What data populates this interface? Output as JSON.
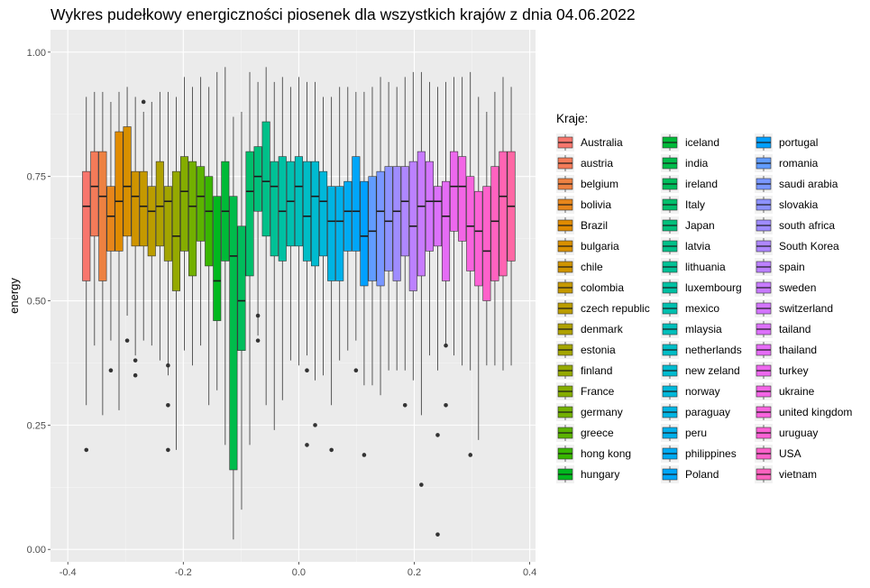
{
  "chart_data": {
    "type": "boxplot",
    "title": "Wykres pudełkowy energiczności piosenek dla wszystkich krajów z dnia 04.06.2022",
    "xlabel": "",
    "ylabel": "energy",
    "xlim": [
      -0.4,
      0.4
    ],
    "ylim": [
      0,
      1
    ],
    "x_ticks": [
      "-0.4",
      "-0.2",
      "0.0",
      "0.2",
      "0.4"
    ],
    "y_ticks": [
      "0.00",
      "0.25",
      "0.50",
      "0.75",
      "1.00"
    ],
    "grid": true,
    "legend_title": "Kraje:",
    "legend_position": "right",
    "series": [
      {
        "name": "Australia",
        "color": "#F8766D",
        "min": 0.29,
        "q1": 0.54,
        "median": 0.69,
        "q3": 0.76,
        "max": 0.91,
        "outliers": [
          0.2
        ]
      },
      {
        "name": "austria",
        "color": "#F37B59",
        "min": 0.41,
        "q1": 0.63,
        "median": 0.73,
        "q3": 0.8,
        "max": 0.92,
        "outliers": []
      },
      {
        "name": "belgium",
        "color": "#ED8141",
        "min": 0.27,
        "q1": 0.54,
        "median": 0.71,
        "q3": 0.8,
        "max": 0.92,
        "outliers": []
      },
      {
        "name": "bolivia",
        "color": "#E7861B",
        "min": 0.42,
        "q1": 0.6,
        "median": 0.67,
        "q3": 0.73,
        "max": 0.9,
        "outliers": [
          0.36
        ]
      },
      {
        "name": "Brazil",
        "color": "#E08B00",
        "min": 0.28,
        "q1": 0.6,
        "median": 0.7,
        "q3": 0.84,
        "max": 0.92,
        "outliers": []
      },
      {
        "name": "bulgaria",
        "color": "#D89000",
        "min": 0.47,
        "q1": 0.63,
        "median": 0.73,
        "q3": 0.85,
        "max": 0.93,
        "outliers": [
          0.42
        ]
      },
      {
        "name": "chile",
        "color": "#CF9400",
        "min": 0.39,
        "q1": 0.61,
        "median": 0.71,
        "q3": 0.76,
        "max": 0.91,
        "outliers": [
          0.38,
          0.35
        ]
      },
      {
        "name": "colombia",
        "color": "#C59900",
        "min": 0.42,
        "q1": 0.61,
        "median": 0.69,
        "q3": 0.76,
        "max": 0.88,
        "outliers": [
          0.9
        ]
      },
      {
        "name": "czech republic",
        "color": "#BB9D00",
        "min": 0.41,
        "q1": 0.59,
        "median": 0.68,
        "q3": 0.73,
        "max": 0.9,
        "outliers": []
      },
      {
        "name": "denmark",
        "color": "#AFA100",
        "min": 0.38,
        "q1": 0.61,
        "median": 0.69,
        "q3": 0.78,
        "max": 0.92,
        "outliers": []
      },
      {
        "name": "estonia",
        "color": "#A3A500",
        "min": 0.35,
        "q1": 0.58,
        "median": 0.7,
        "q3": 0.73,
        "max": 0.92,
        "outliers": [
          0.37,
          0.29,
          0.2
        ]
      },
      {
        "name": "finland",
        "color": "#95A900",
        "min": 0.2,
        "q1": 0.52,
        "median": 0.63,
        "q3": 0.76,
        "max": 0.91,
        "outliers": []
      },
      {
        "name": "France",
        "color": "#85AD00",
        "min": 0.4,
        "q1": 0.6,
        "median": 0.72,
        "q3": 0.79,
        "max": 0.95,
        "outliers": []
      },
      {
        "name": "germany",
        "color": "#72B000",
        "min": 0.37,
        "q1": 0.55,
        "median": 0.69,
        "q3": 0.78,
        "max": 0.93,
        "outliers": []
      },
      {
        "name": "greece",
        "color": "#5BB300",
        "min": 0.41,
        "q1": 0.62,
        "median": 0.71,
        "q3": 0.77,
        "max": 0.95,
        "outliers": []
      },
      {
        "name": "hong kong",
        "color": "#39B600",
        "min": 0.29,
        "q1": 0.57,
        "median": 0.68,
        "q3": 0.75,
        "max": 0.93,
        "outliers": []
      },
      {
        "name": "hungary",
        "color": "#00B81F",
        "min": 0.32,
        "q1": 0.46,
        "median": 0.54,
        "q3": 0.71,
        "max": 0.96,
        "outliers": []
      },
      {
        "name": "iceland",
        "color": "#00BA38",
        "min": 0.21,
        "q1": 0.58,
        "median": 0.68,
        "q3": 0.78,
        "max": 0.97,
        "outliers": []
      },
      {
        "name": "india",
        "color": "#00BC4B",
        "min": 0.02,
        "q1": 0.16,
        "median": 0.59,
        "q3": 0.71,
        "max": 0.87,
        "outliers": []
      },
      {
        "name": "ireland",
        "color": "#00BD5C",
        "min": 0.08,
        "q1": 0.4,
        "median": 0.5,
        "q3": 0.65,
        "max": 0.88,
        "outliers": []
      },
      {
        "name": "Italy",
        "color": "#00BF6C",
        "min": 0.21,
        "q1": 0.55,
        "median": 0.72,
        "q3": 0.8,
        "max": 0.96,
        "outliers": []
      },
      {
        "name": "Japan",
        "color": "#00C07B",
        "min": 0.43,
        "q1": 0.68,
        "median": 0.75,
        "q3": 0.81,
        "max": 0.94,
        "outliers": [
          0.47,
          0.42
        ]
      },
      {
        "name": "latvia",
        "color": "#00C089",
        "min": 0.29,
        "q1": 0.63,
        "median": 0.74,
        "q3": 0.86,
        "max": 0.97,
        "outliers": []
      },
      {
        "name": "lithuania",
        "color": "#00C196",
        "min": 0.24,
        "q1": 0.59,
        "median": 0.73,
        "q3": 0.78,
        "max": 0.94,
        "outliers": []
      },
      {
        "name": "luxembourg",
        "color": "#00C1A3",
        "min": 0.3,
        "q1": 0.58,
        "median": 0.68,
        "q3": 0.79,
        "max": 0.95,
        "outliers": []
      },
      {
        "name": "mexico",
        "color": "#00C0AF",
        "min": 0.38,
        "q1": 0.61,
        "median": 0.7,
        "q3": 0.78,
        "max": 0.93,
        "outliers": []
      },
      {
        "name": "mlaysia",
        "color": "#00BFBB",
        "min": 0.37,
        "q1": 0.61,
        "median": 0.73,
        "q3": 0.79,
        "max": 0.95,
        "outliers": []
      },
      {
        "name": "netherlands",
        "color": "#00BDC6",
        "min": 0.39,
        "q1": 0.58,
        "median": 0.67,
        "q3": 0.78,
        "max": 0.94,
        "outliers": [
          0.36,
          0.21
        ]
      },
      {
        "name": "new zeland",
        "color": "#00BBD0",
        "min": 0.34,
        "q1": 0.57,
        "median": 0.71,
        "q3": 0.78,
        "max": 0.94,
        "outliers": [
          0.25
        ]
      },
      {
        "name": "norway",
        "color": "#00B8DA",
        "min": 0.35,
        "q1": 0.59,
        "median": 0.7,
        "q3": 0.76,
        "max": 0.91,
        "outliers": []
      },
      {
        "name": "paraguay",
        "color": "#00B4E3",
        "min": 0.29,
        "q1": 0.54,
        "median": 0.66,
        "q3": 0.73,
        "max": 0.91,
        "outliers": [
          0.2
        ]
      },
      {
        "name": "peru",
        "color": "#00B0EB",
        "min": 0.38,
        "q1": 0.54,
        "median": 0.66,
        "q3": 0.73,
        "max": 0.93,
        "outliers": []
      },
      {
        "name": "philippines",
        "color": "#00ABF3",
        "min": 0.4,
        "q1": 0.6,
        "median": 0.68,
        "q3": 0.74,
        "max": 0.93,
        "outliers": []
      },
      {
        "name": "Poland",
        "color": "#00A6F9",
        "min": 0.42,
        "q1": 0.6,
        "median": 0.68,
        "q3": 0.79,
        "max": 0.92,
        "outliers": [
          0.36
        ]
      },
      {
        "name": "portugal",
        "color": "#00A0FF",
        "min": 0.33,
        "q1": 0.53,
        "median": 0.63,
        "q3": 0.74,
        "max": 0.92,
        "outliers": [
          0.19
        ]
      },
      {
        "name": "romania",
        "color": "#619CFF",
        "min": 0.33,
        "q1": 0.54,
        "median": 0.64,
        "q3": 0.75,
        "max": 0.93,
        "outliers": []
      },
      {
        "name": "saudi arabia",
        "color": "#7997FF",
        "min": 0.31,
        "q1": 0.53,
        "median": 0.68,
        "q3": 0.76,
        "max": 0.95,
        "outliers": []
      },
      {
        "name": "slovakia",
        "color": "#8D92FF",
        "min": 0.36,
        "q1": 0.56,
        "median": 0.66,
        "q3": 0.77,
        "max": 0.94,
        "outliers": []
      },
      {
        "name": "south africa",
        "color": "#9F8CFF",
        "min": 0.36,
        "q1": 0.54,
        "median": 0.68,
        "q3": 0.77,
        "max": 0.93,
        "outliers": []
      },
      {
        "name": "South Korea",
        "color": "#AE87FF",
        "min": 0.36,
        "q1": 0.59,
        "median": 0.7,
        "q3": 0.77,
        "max": 0.95,
        "outliers": [
          0.29
        ]
      },
      {
        "name": "spain",
        "color": "#BC81FF",
        "min": 0.34,
        "q1": 0.52,
        "median": 0.65,
        "q3": 0.78,
        "max": 0.96,
        "outliers": []
      },
      {
        "name": "sweden",
        "color": "#C87BFF",
        "min": 0.27,
        "q1": 0.55,
        "median": 0.69,
        "q3": 0.8,
        "max": 0.96,
        "outliers": [
          0.13
        ]
      },
      {
        "name": "switzerland",
        "color": "#D375FE",
        "min": 0.39,
        "q1": 0.6,
        "median": 0.7,
        "q3": 0.78,
        "max": 0.94,
        "outliers": []
      },
      {
        "name": "tailand",
        "color": "#DC71FA",
        "min": 0.36,
        "q1": 0.61,
        "median": 0.7,
        "q3": 0.73,
        "max": 0.93,
        "outliers": [
          0.23,
          0.03
        ]
      },
      {
        "name": "thailand",
        "color": "#E56CF5",
        "min": 0.41,
        "q1": 0.54,
        "median": 0.67,
        "q3": 0.74,
        "max": 0.94,
        "outliers": [
          0.29,
          0.41
        ]
      },
      {
        "name": "turkey",
        "color": "#ED68EE",
        "min": 0.39,
        "q1": 0.64,
        "median": 0.73,
        "q3": 0.8,
        "max": 0.95,
        "outliers": []
      },
      {
        "name": "ukraine",
        "color": "#F365E6",
        "min": 0.37,
        "q1": 0.62,
        "median": 0.73,
        "q3": 0.79,
        "max": 0.95,
        "outliers": []
      },
      {
        "name": "united kingdom",
        "color": "#F863DE",
        "min": 0.36,
        "q1": 0.56,
        "median": 0.65,
        "q3": 0.75,
        "max": 0.96,
        "outliers": [
          0.19
        ]
      },
      {
        "name": "uruguay",
        "color": "#FC61D5",
        "min": 0.22,
        "q1": 0.53,
        "median": 0.64,
        "q3": 0.72,
        "max": 0.91,
        "outliers": []
      },
      {
        "name": "USA",
        "color": "#FE61CA",
        "min": 0.37,
        "q1": 0.5,
        "median": 0.6,
        "q3": 0.73,
        "max": 0.88,
        "outliers": []
      },
      {
        "name": "vietnam",
        "color": "#FF62BF",
        "min": 0.37,
        "q1": 0.54,
        "median": 0.66,
        "q3": 0.77,
        "max": 0.92,
        "outliers": []
      },
      {
        "name": "USA",
        "color": "#FF64B3",
        "min": 0.36,
        "q1": 0.55,
        "median": 0.71,
        "q3": 0.8,
        "max": 0.95,
        "outliers": []
      },
      {
        "name": "vietnam",
        "color": "#FF67A4",
        "min": 0.37,
        "q1": 0.58,
        "median": 0.69,
        "q3": 0.8,
        "max": 0.93,
        "outliers": []
      }
    ]
  }
}
